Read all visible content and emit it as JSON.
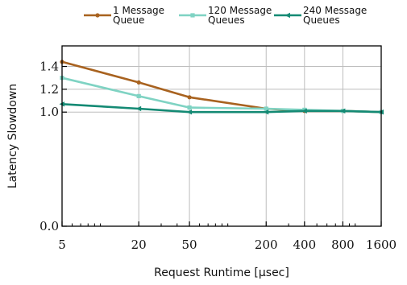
{
  "chart_data": {
    "type": "line",
    "title": "",
    "xlabel": "Request Runtime [μsec]",
    "ylabel": "Latency Slowdown",
    "x_scale": "log",
    "x_ticks": [
      5,
      20,
      50,
      200,
      400,
      800,
      1600
    ],
    "x_tick_labels": [
      "5",
      "20",
      "50",
      "200",
      "400",
      "800",
      "1600"
    ],
    "xlim": [
      5,
      1600
    ],
    "y_ticks": [
      0.0,
      1.0,
      1.2,
      1.4
    ],
    "y_tick_labels": [
      "0.0",
      "1.0",
      "1.2",
      "1.4"
    ],
    "ylim": [
      0.0,
      1.58
    ],
    "grid": true,
    "legend_position": "top",
    "series": [
      {
        "name": "1 Message Queue",
        "label_lines": [
          "1 Message",
          "Queue"
        ],
        "color": "#a8621f",
        "marker": "circle",
        "x": [
          5,
          20,
          50,
          200,
          400,
          800,
          1600
        ],
        "y": [
          1.44,
          1.26,
          1.13,
          1.03,
          1.01,
          1.01,
          1.0
        ]
      },
      {
        "name": "120 Message Queues",
        "label_lines": [
          "120 Message",
          "Queues"
        ],
        "color": "#7fd3c3",
        "marker": "square",
        "x": [
          5,
          20,
          50,
          200,
          400,
          800,
          1600
        ],
        "y": [
          1.3,
          1.14,
          1.04,
          1.03,
          1.02,
          1.01,
          1.0
        ]
      },
      {
        "name": "240 Message Queues",
        "label_lines": [
          "240 Message",
          "Queues"
        ],
        "color": "#148a74",
        "marker": "triangle-left",
        "x": [
          5,
          20,
          50,
          200,
          400,
          800,
          1600
        ],
        "y": [
          1.07,
          1.03,
          1.0,
          1.0,
          1.01,
          1.01,
          1.0
        ]
      }
    ]
  }
}
